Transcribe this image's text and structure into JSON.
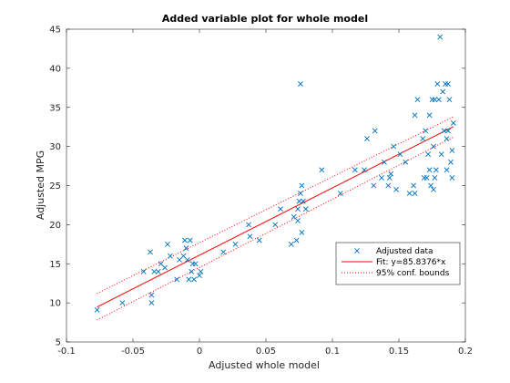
{
  "chart_data": {
    "type": "scatter",
    "title": "Added variable plot for whole model",
    "xlabel": "Adjusted whole model",
    "ylabel": "Adjusted MPG",
    "xlim": [
      -0.1,
      0.2
    ],
    "ylim": [
      5,
      45
    ],
    "xticks": [
      -0.1,
      -0.05,
      0,
      0.05,
      0.1,
      0.15,
      0.2
    ],
    "xtick_labels": [
      "-0.1",
      "-0.05",
      "0",
      "0.05",
      "0.1",
      "0.15",
      "0.2"
    ],
    "yticks": [
      5,
      10,
      15,
      20,
      25,
      30,
      35,
      40,
      45
    ],
    "ytick_labels": [
      "5",
      "10",
      "15",
      "20",
      "25",
      "30",
      "35",
      "40",
      "45"
    ],
    "grid": false,
    "legend_position": "lower-right",
    "series": [
      {
        "name": "Adjusted data",
        "kind": "markers",
        "marker": "x",
        "color": "#0072BD",
        "points": [
          [
            -0.077,
            9.1
          ],
          [
            -0.058,
            10.0
          ],
          [
            -0.042,
            14.0
          ],
          [
            -0.037,
            16.5
          ],
          [
            -0.036,
            11.0
          ],
          [
            -0.036,
            10.0
          ],
          [
            -0.034,
            14.0
          ],
          [
            -0.031,
            14.0
          ],
          [
            -0.029,
            15.0
          ],
          [
            -0.026,
            14.5
          ],
          [
            -0.024,
            17.5
          ],
          [
            -0.022,
            16.0
          ],
          [
            -0.017,
            13.0
          ],
          [
            -0.015,
            15.5
          ],
          [
            -0.012,
            16.0
          ],
          [
            -0.011,
            18.0
          ],
          [
            -0.01,
            17.0
          ],
          [
            -0.009,
            15.5
          ],
          [
            -0.008,
            13.0
          ],
          [
            -0.006,
            14.0
          ],
          [
            -0.005,
            15.0
          ],
          [
            -0.004,
            13.0
          ],
          [
            -0.003,
            15.0
          ],
          [
            0.0,
            13.5
          ],
          [
            0.001,
            14.0
          ],
          [
            -0.007,
            18.0
          ],
          [
            0.018,
            16.5
          ],
          [
            0.027,
            17.5
          ],
          [
            0.037,
            20.0
          ],
          [
            0.038,
            18.5
          ],
          [
            0.045,
            18.0
          ],
          [
            0.057,
            20.0
          ],
          [
            0.061,
            22.0
          ],
          [
            0.069,
            17.5
          ],
          [
            0.071,
            21.0
          ],
          [
            0.073,
            18.0
          ],
          [
            0.074,
            22.0
          ],
          [
            0.074,
            20.5
          ],
          [
            0.075,
            23.0
          ],
          [
            0.076,
            24.0
          ],
          [
            0.076,
            38.0
          ],
          [
            0.077,
            25.0
          ],
          [
            0.077,
            19.0
          ],
          [
            0.078,
            23.0
          ],
          [
            0.08,
            22.0
          ],
          [
            0.092,
            27.0
          ],
          [
            0.106,
            24.0
          ],
          [
            0.117,
            27.0
          ],
          [
            0.124,
            27.0
          ],
          [
            0.126,
            31.0
          ],
          [
            0.131,
            25.0
          ],
          [
            0.132,
            32.0
          ],
          [
            0.137,
            26.0
          ],
          [
            0.139,
            28.0
          ],
          [
            0.142,
            25.0
          ],
          [
            0.143,
            26.0
          ],
          [
            0.144,
            26.5
          ],
          [
            0.146,
            30.0
          ],
          [
            0.148,
            24.5
          ],
          [
            0.151,
            29.0
          ],
          [
            0.155,
            28.0
          ],
          [
            0.158,
            24.0
          ],
          [
            0.161,
            25.0
          ],
          [
            0.162,
            24.0
          ],
          [
            0.162,
            34.0
          ],
          [
            0.164,
            36.0
          ],
          [
            0.168,
            31.0
          ],
          [
            0.169,
            26.0
          ],
          [
            0.17,
            32.0
          ],
          [
            0.171,
            26.0
          ],
          [
            0.172,
            29.0
          ],
          [
            0.173,
            27.0
          ],
          [
            0.173,
            34.0
          ],
          [
            0.174,
            25.0
          ],
          [
            0.175,
            36.0
          ],
          [
            0.176,
            24.5
          ],
          [
            0.176,
            30.0
          ],
          [
            0.177,
            26.0
          ],
          [
            0.177,
            36.0
          ],
          [
            0.178,
            27.0
          ],
          [
            0.179,
            38.0
          ],
          [
            0.18,
            36.0
          ],
          [
            0.181,
            44.0
          ],
          [
            0.182,
            29.0
          ],
          [
            0.183,
            37.0
          ],
          [
            0.184,
            32.0
          ],
          [
            0.185,
            38.0
          ],
          [
            0.186,
            27.0
          ],
          [
            0.186,
            31.0
          ],
          [
            0.187,
            32.0
          ],
          [
            0.187,
            38.0
          ],
          [
            0.188,
            36.0
          ],
          [
            0.189,
            28.0
          ],
          [
            0.19,
            29.5
          ],
          [
            0.19,
            26.0
          ],
          [
            0.191,
            33.0
          ]
        ]
      },
      {
        "name": "Fit: y=85.8376*x",
        "kind": "line",
        "dash": "solid",
        "color": "#FF0000",
        "points": [
          [
            -0.077,
            9.47
          ],
          [
            0.191,
            32.54
          ]
        ]
      },
      {
        "name": "95% conf. bounds",
        "kind": "line",
        "dash": "dotted",
        "color": "#FF0000",
        "points": [
          [
            -0.077,
            11.2
          ],
          [
            0.191,
            33.8
          ]
        ]
      },
      {
        "name": "95% conf. bounds",
        "kind": "line",
        "dash": "dotted",
        "color": "#FF0000",
        "points": [
          [
            -0.077,
            7.8
          ],
          [
            0.191,
            31.2
          ]
        ],
        "legend": false
      }
    ]
  }
}
